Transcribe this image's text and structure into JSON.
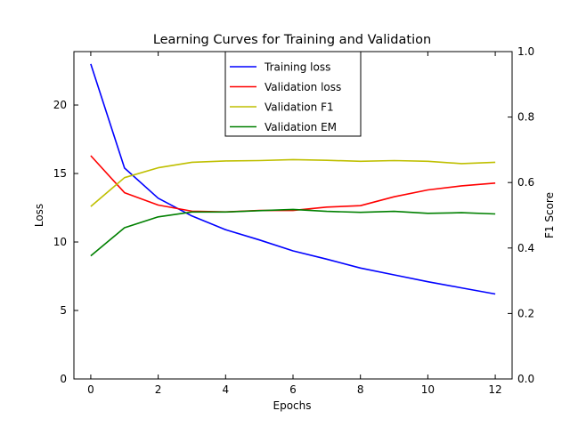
{
  "chart_data": {
    "type": "line",
    "title": "Learning Curves for Training and Validation",
    "xlabel": "Epochs",
    "ylabel": "Loss",
    "y2label": "F1 Score",
    "xlim": [
      -0.5,
      12.5
    ],
    "ylim": [
      0,
      23.9
    ],
    "y2lim": [
      0.0,
      1.0
    ],
    "xticks": [
      0,
      2,
      4,
      6,
      8,
      10,
      12
    ],
    "yticks": [
      0,
      5,
      10,
      15,
      20
    ],
    "y2ticks": [
      "0.0",
      "0.2",
      "0.4",
      "0.6",
      "0.8",
      "1.0"
    ],
    "grid": false,
    "legend_position": "top-center",
    "x": [
      0,
      1,
      2,
      3,
      4,
      5,
      6,
      7,
      8,
      9,
      10,
      11,
      12
    ],
    "series": [
      {
        "name": "Training loss",
        "axis": "left",
        "color": "#0000ff",
        "values": [
          23.0,
          15.4,
          13.2,
          11.9,
          10.9,
          10.15,
          9.35,
          8.75,
          8.1,
          7.6,
          7.1,
          6.65,
          6.2
        ]
      },
      {
        "name": "Validation loss",
        "axis": "left",
        "color": "#ff0000",
        "values": [
          16.3,
          13.6,
          12.7,
          12.25,
          12.2,
          12.3,
          12.3,
          12.55,
          12.65,
          13.3,
          13.8,
          14.1,
          14.3
        ]
      },
      {
        "name": "Validation F1",
        "axis": "right",
        "color": "#bfbf00",
        "values": [
          0.527,
          0.615,
          0.645,
          0.662,
          0.666,
          0.667,
          0.67,
          0.668,
          0.665,
          0.667,
          0.665,
          0.658,
          0.662
        ]
      },
      {
        "name": "Validation EM",
        "axis": "right",
        "color": "#008000",
        "values": [
          0.376,
          0.462,
          0.495,
          0.51,
          0.51,
          0.514,
          0.518,
          0.512,
          0.509,
          0.512,
          0.506,
          0.508,
          0.504
        ]
      }
    ]
  }
}
